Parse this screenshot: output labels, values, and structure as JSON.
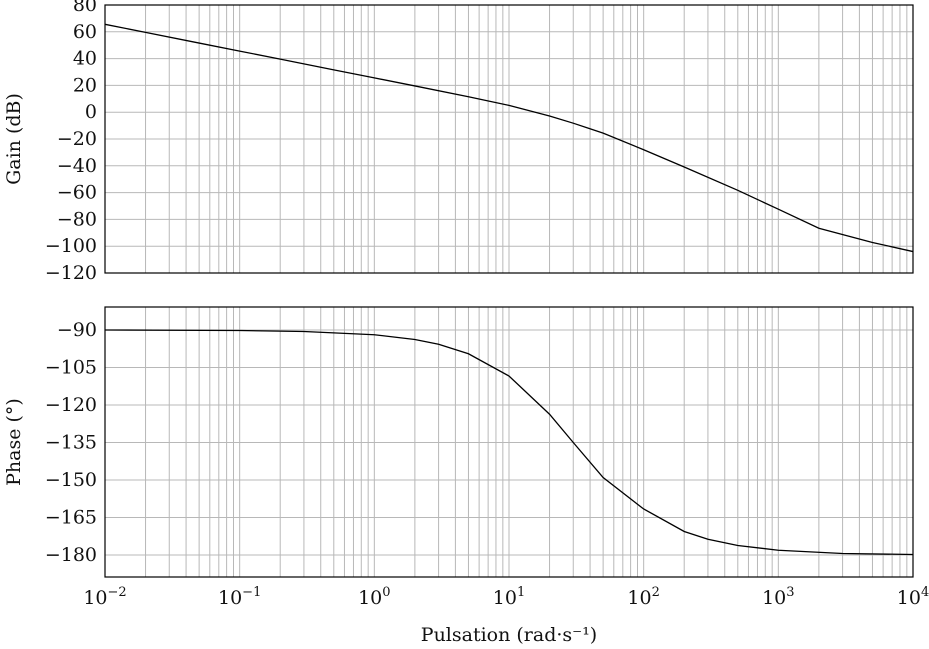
{
  "chart_data": [
    {
      "type": "line",
      "panel": "gain",
      "ylabel": "Gain (dB)",
      "xscale": "log",
      "xlim": [
        0.01,
        10000
      ],
      "ylim": [
        -120,
        80
      ],
      "yticks": [
        80,
        60,
        40,
        20,
        0,
        -20,
        -40,
        -60,
        -80,
        -100,
        -120
      ],
      "ytick_labels": [
        "80",
        "60",
        "40",
        "20",
        "0",
        "−20",
        "−40",
        "−60",
        "−80",
        "−100",
        "−120"
      ],
      "grid": true,
      "series": [
        {
          "x": [
            0.01,
            0.02,
            0.05,
            0.1,
            0.2,
            0.5,
            1,
            2,
            5,
            10,
            20,
            30,
            50,
            100,
            200,
            500,
            1000,
            2000,
            5000,
            10000
          ],
          "y": [
            65.6,
            59.6,
            51.6,
            45.6,
            39.6,
            31.6,
            25.6,
            19.6,
            11.5,
            5.1,
            -2.8,
            -8.2,
            -15.6,
            -28.0,
            -40.9,
            -58.3,
            -72.4,
            -86.6,
            -97.2,
            -104.0
          ]
        }
      ]
    },
    {
      "type": "line",
      "panel": "phase",
      "ylabel": "Phase (°)",
      "xlabel": "Pulsation (rad·s⁻¹)",
      "xscale": "log",
      "xlim": [
        0.01,
        10000
      ],
      "ylim": [
        -185,
        -85
      ],
      "yticks": [
        -90,
        -105,
        -120,
        -135,
        -150,
        -165,
        -180
      ],
      "ytick_labels": [
        "−90",
        "−105",
        "−120",
        "−135",
        "−150",
        "−165",
        "−180"
      ],
      "xticks": [
        0.01,
        0.1,
        1,
        10,
        100,
        1000,
        10000
      ],
      "xtick_labels": [
        {
          "base": "10",
          "exp": "−2"
        },
        {
          "base": "10",
          "exp": "−1"
        },
        {
          "base": "10",
          "exp": "0"
        },
        {
          "base": "10",
          "exp": "1"
        },
        {
          "base": "10",
          "exp": "2"
        },
        {
          "base": "10",
          "exp": "3"
        },
        {
          "base": "10",
          "exp": "4"
        }
      ],
      "grid": true,
      "series": [
        {
          "x": [
            0.01,
            0.1,
            0.3,
            1,
            2,
            3,
            5,
            10,
            20,
            30,
            50,
            100,
            200,
            300,
            500,
            1000,
            3000,
            10000
          ],
          "y": [
            -90.0,
            -90.2,
            -90.6,
            -91.9,
            -93.8,
            -95.7,
            -99.5,
            -108.4,
            -123.7,
            -135.0,
            -149.0,
            -161.6,
            -170.6,
            -173.7,
            -176.2,
            -178.1,
            -179.4,
            -179.8
          ]
        }
      ]
    }
  ]
}
